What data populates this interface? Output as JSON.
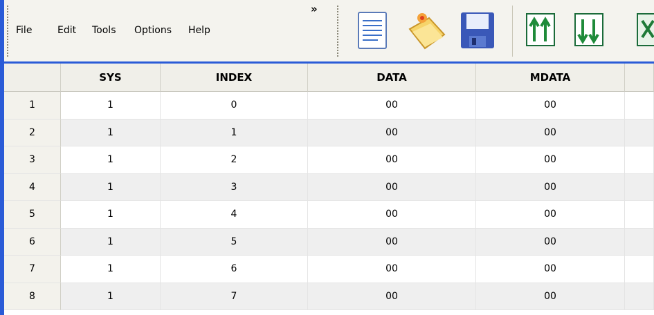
{
  "menu": {
    "items": [
      "File",
      "Edit",
      "Tools",
      "Options",
      "Help"
    ],
    "overflow": "»"
  },
  "table": {
    "columns": [
      "SYS",
      "INDEX",
      "DATA",
      "MDATA"
    ],
    "rows": [
      [
        "1",
        "1",
        "0",
        "00",
        "00"
      ],
      [
        "2",
        "1",
        "1",
        "00",
        "00"
      ],
      [
        "3",
        "1",
        "2",
        "00",
        "00"
      ],
      [
        "4",
        "1",
        "3",
        "00",
        "00"
      ],
      [
        "5",
        "1",
        "4",
        "00",
        "00"
      ],
      [
        "6",
        "1",
        "5",
        "00",
        "00"
      ],
      [
        "7",
        "1",
        "6",
        "00",
        "00"
      ],
      [
        "8",
        "1",
        "7",
        "00",
        "00"
      ]
    ]
  }
}
